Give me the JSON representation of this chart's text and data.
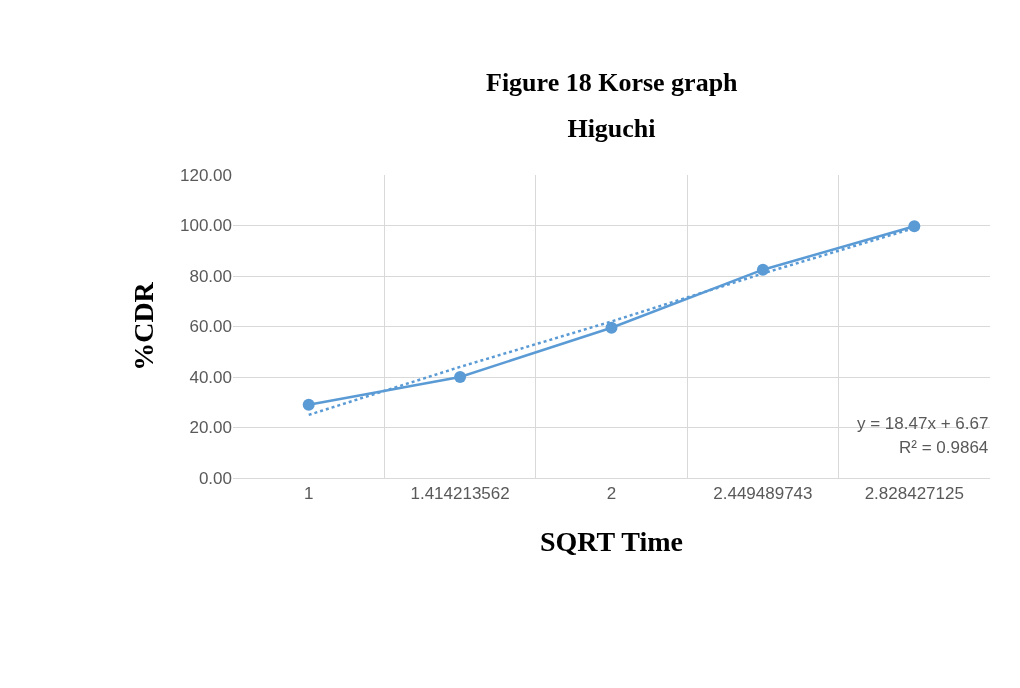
{
  "chart_data": {
    "type": "line",
    "title": "Higuchi",
    "xlabel": "SQRT Time",
    "ylabel": "%CDR",
    "annotations": [
      "Figure 18 Korse graph",
      "y = 18.47x + 6.67",
      "R² = 0.9864"
    ],
    "categories": [
      "1",
      "1.414213562",
      "2",
      "2.449489743",
      "2.828427125"
    ],
    "series": [
      {
        "color": "#5b9bd5",
        "values": [
          29,
          40,
          59.5,
          82.5,
          99.7
        ],
        "marker": "circle",
        "line_style": "solid"
      },
      {
        "color": "#5b9bd5",
        "values": [
          25,
          44,
          62,
          81,
          99
        ],
        "marker": "none",
        "line_style": "dotted"
      }
    ],
    "ylim": [
      0,
      120
    ],
    "yticks": [
      {
        "value": 0,
        "label": "0.00"
      },
      {
        "value": 20,
        "label": "20.00"
      },
      {
        "value": 40,
        "label": "40.00"
      },
      {
        "value": 60,
        "label": "60.00"
      },
      {
        "value": 80,
        "label": "80.00"
      },
      {
        "value": 100,
        "label": "100.00"
      },
      {
        "value": 120,
        "label": "120.00"
      }
    ],
    "grid": true
  }
}
